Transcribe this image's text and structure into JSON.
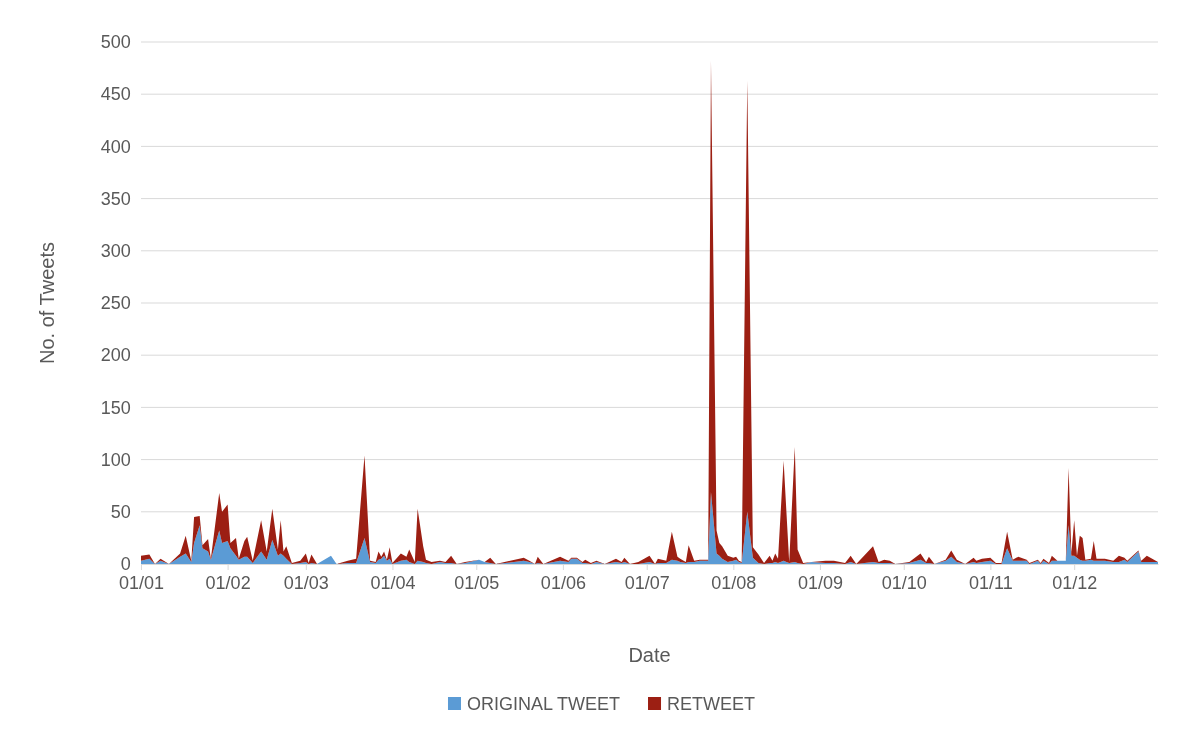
{
  "chart_data": {
    "type": "area",
    "stacked": true,
    "xlabel": "Date",
    "ylabel": "No. of Tweets",
    "xlim": [
      "--01-01",
      "--12-31"
    ],
    "xticks": [
      {
        "value": "--01-01",
        "label": "01/01"
      },
      {
        "value": "--02-01",
        "label": "01/02"
      },
      {
        "value": "--03-01",
        "label": "01/03"
      },
      {
        "value": "--04-01",
        "label": "01/04"
      },
      {
        "value": "--05-01",
        "label": "01/05"
      },
      {
        "value": "--06-01",
        "label": "01/06"
      },
      {
        "value": "--07-01",
        "label": "01/07"
      },
      {
        "value": "--08-01",
        "label": "01/08"
      },
      {
        "value": "--09-01",
        "label": "01/09"
      },
      {
        "value": "--10-01",
        "label": "01/10"
      },
      {
        "value": "--11-01",
        "label": "01/11"
      },
      {
        "value": "--12-01",
        "label": "01/12"
      }
    ],
    "ylim": [
      0,
      500
    ],
    "yticks": [
      0,
      50,
      100,
      150,
      200,
      250,
      300,
      350,
      400,
      450,
      500
    ],
    "grid": "y",
    "legend": "bottom",
    "x": [
      "--01-01",
      "--01-04",
      "--01-06",
      "--01-08",
      "--01-11",
      "--01-15",
      "--01-17",
      "--01-19",
      "--01-20",
      "--01-22",
      "--01-23",
      "--01-25",
      "--01-26",
      "--01-29",
      "--01-30",
      "--02-01",
      "--02-02",
      "--02-04",
      "--02-05",
      "--02-07",
      "--02-08",
      "--02-10",
      "--02-13",
      "--02-15",
      "--02-17",
      "--02-19",
      "--02-20",
      "--02-21",
      "--02-22",
      "--02-24",
      "--02-27",
      "--03-01",
      "--03-02",
      "--03-03",
      "--03-05",
      "--03-10",
      "--03-12",
      "--03-16",
      "--03-19",
      "--03-22",
      "--03-24",
      "--03-26",
      "--03-27",
      "--03-28",
      "--03-29",
      "--03-30",
      "--03-31",
      "--04-01",
      "--04-04",
      "--04-06",
      "--04-07",
      "--04-09",
      "--04-10",
      "--04-12",
      "--04-13",
      "--04-15",
      "--04-18",
      "--04-20",
      "--04-22",
      "--04-24",
      "--04-27",
      "--05-02",
      "--05-04",
      "--05-06",
      "--05-08",
      "--05-18",
      "--05-20",
      "--05-22",
      "--05-23",
      "--05-25",
      "--05-31",
      "--06-03",
      "--06-04",
      "--06-06",
      "--06-08",
      "--06-09",
      "--06-11",
      "--06-13",
      "--06-16",
      "--06-20",
      "--06-22",
      "--06-23",
      "--06-25",
      "--06-28",
      "--07-02",
      "--07-04",
      "--07-05",
      "--07-08",
      "--07-10",
      "--07-12",
      "--07-13",
      "--07-15",
      "--07-16",
      "--07-18",
      "--07-20",
      "--07-23",
      "--07-24",
      "--07-26",
      "--07-27",
      "--07-28",
      "--07-30",
      "--08-01",
      "--08-02",
      "--08-03",
      "--08-04",
      "--08-06",
      "--08-08",
      "--08-10",
      "--08-12",
      "--08-14",
      "--08-15",
      "--08-16",
      "--08-17",
      "--08-19",
      "--08-20",
      "--08-21",
      "--08-23",
      "--08-24",
      "--08-26",
      "--08-29",
      "--09-03",
      "--09-06",
      "--09-10",
      "--09-12",
      "--09-14",
      "--09-20",
      "--09-22",
      "--09-24",
      "--09-26",
      "--09-28",
      "--10-03",
      "--10-07",
      "--10-09",
      "--10-10",
      "--10-12",
      "--10-16",
      "--10-18",
      "--10-20",
      "--10-23",
      "--10-26",
      "--10-27",
      "--10-29",
      "--11-01",
      "--11-03",
      "--11-05",
      "--11-07",
      "--11-09",
      "--11-11",
      "--11-14",
      "--11-15",
      "--11-18",
      "--11-19",
      "--11-20",
      "--11-22",
      "--11-23",
      "--11-25",
      "--11-28",
      "--11-29",
      "--11-30",
      "--12-01",
      "--12-02",
      "--12-03",
      "--12-04",
      "--12-05",
      "--12-07",
      "--12-08",
      "--12-09",
      "--12-12",
      "--12-15",
      "--12-17",
      "--12-19",
      "--12-20",
      "--12-24",
      "--12-25",
      "--12-27",
      "--12-31"
    ],
    "series": [
      {
        "name": "ORIGINAL TWEET",
        "color": "#5b9bd5",
        "values": [
          3,
          5,
          0,
          3,
          0,
          7,
          10,
          2,
          20,
          37,
          15,
          12,
          4,
          32,
          20,
          22,
          15,
          8,
          4,
          7,
          7,
          1,
          12,
          4,
          23,
          8,
          10,
          8,
          5,
          0,
          1,
          2,
          0,
          1,
          0,
          8,
          0,
          1,
          1,
          25,
          2,
          1,
          4,
          5,
          8,
          3,
          5,
          0,
          3,
          4,
          2,
          0,
          3,
          2,
          1,
          0,
          2,
          1,
          1,
          0,
          1,
          4,
          2,
          1,
          0,
          3,
          2,
          0,
          1,
          0,
          3,
          2,
          5,
          5,
          1,
          1,
          0,
          2,
          0,
          2,
          1,
          2,
          0,
          0,
          2,
          0,
          1,
          1,
          4,
          3,
          2,
          1,
          2,
          2,
          3,
          3,
          69,
          10,
          8,
          5,
          2,
          3,
          4,
          2,
          1,
          50,
          6,
          1,
          0,
          1,
          1,
          2,
          1,
          3,
          2,
          1,
          2,
          1,
          0,
          2,
          1,
          1,
          0,
          2,
          0,
          2,
          1,
          1,
          1,
          0,
          1,
          4,
          1,
          1,
          0,
          3,
          7,
          2,
          0,
          2,
          1,
          2,
          3,
          0,
          0,
          15,
          3,
          3,
          3,
          0,
          3,
          0,
          3,
          0,
          3,
          3,
          3,
          37,
          8,
          8,
          6,
          4,
          3,
          3,
          4,
          3,
          3,
          3,
          2,
          2,
          4,
          2,
          12,
          2,
          2,
          2
        ]
      },
      {
        "name": "RETWEET",
        "color": "#9c1f13",
        "values": [
          5,
          4,
          0,
          2,
          0,
          3,
          17,
          1,
          25,
          9,
          3,
          12,
          1,
          36,
          30,
          35,
          5,
          17,
          1,
          15,
          19,
          2,
          30,
          8,
          30,
          6,
          32,
          4,
          12,
          1,
          2,
          8,
          1,
          8,
          0,
          0,
          0,
          2,
          4,
          79,
          1,
          1,
          8,
          2,
          4,
          1,
          11,
          1,
          7,
          3,
          12,
          2,
          50,
          15,
          3,
          2,
          1,
          1,
          7,
          0,
          1,
          0,
          0,
          5,
          0,
          3,
          1,
          0,
          6,
          0,
          4,
          1,
          1,
          1,
          1,
          3,
          1,
          1,
          0,
          3,
          1,
          4,
          0,
          2,
          6,
          0,
          4,
          2,
          27,
          4,
          3,
          1,
          16,
          1,
          1,
          1,
          413,
          22,
          12,
          12,
          6,
          3,
          3,
          1,
          1,
          413,
          10,
          8,
          1,
          7,
          2,
          8,
          4,
          96,
          48,
          1,
          110,
          13,
          1,
          0,
          2,
          2,
          1,
          6,
          0,
          15,
          1,
          3,
          2,
          0,
          1,
          6,
          1,
          6,
          0,
          1,
          6,
          2,
          0,
          4,
          2,
          3,
          3,
          1,
          1,
          16,
          1,
          4,
          1,
          1,
          1,
          1,
          2,
          1,
          5,
          0,
          0,
          55,
          2,
          34,
          2,
          23,
          22,
          1,
          1,
          19,
          2,
          2,
          1,
          6,
          2,
          1,
          1,
          1,
          6,
          0
        ]
      }
    ]
  }
}
